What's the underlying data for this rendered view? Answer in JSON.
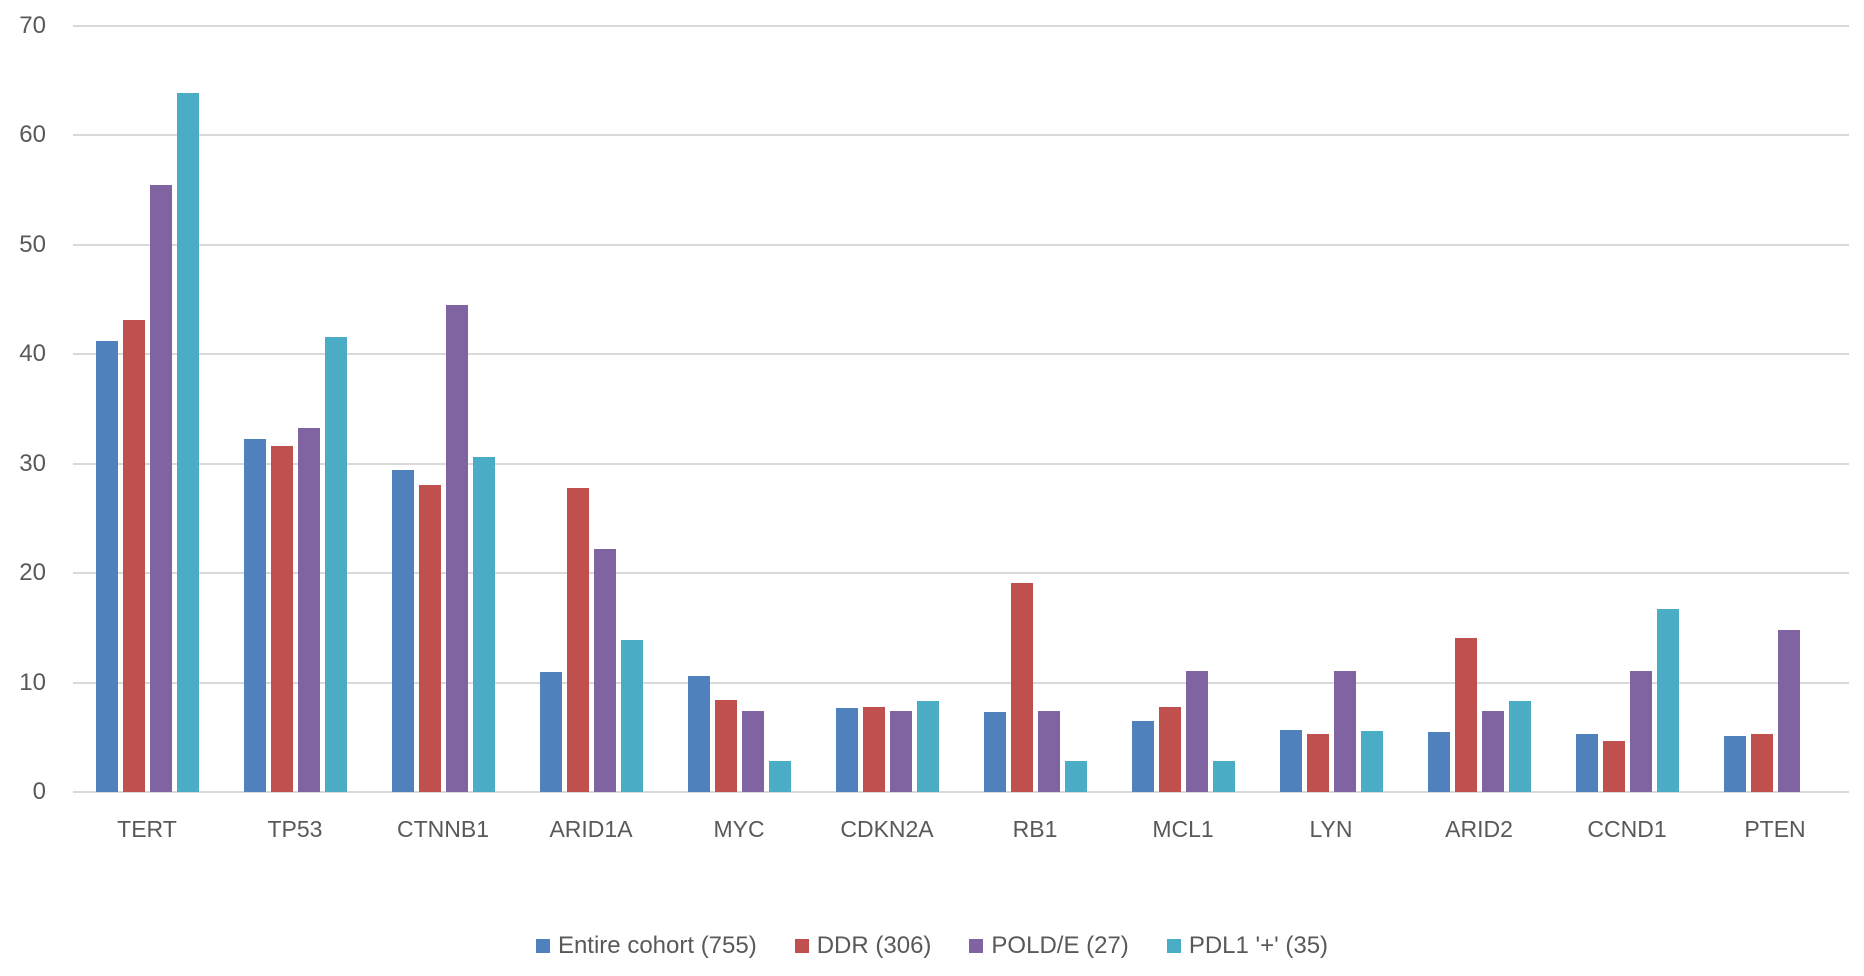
{
  "chart_data": {
    "type": "bar",
    "title": "",
    "xlabel": "",
    "ylabel": "",
    "ylim": [
      0,
      70
    ],
    "yticks": [
      0,
      10,
      20,
      30,
      40,
      50,
      60,
      70
    ],
    "grid": true,
    "legend_position": "bottom",
    "categories": [
      "TERT",
      "TP53",
      "CTNNB1",
      "ARID1A",
      "MYC",
      "CDKN2A",
      "RB1",
      "MCL1",
      "LYN",
      "ARID2",
      "CCND1",
      "PTEN"
    ],
    "series": [
      {
        "name": "Entire cohort (755)",
        "color": "#4F81BD",
        "values": [
          41.2,
          32.3,
          29.4,
          11.0,
          10.6,
          7.7,
          7.3,
          6.5,
          5.7,
          5.5,
          5.3,
          5.1
        ]
      },
      {
        "name": "DDR (306)",
        "color": "#C0504D",
        "values": [
          43.1,
          31.6,
          28.1,
          27.8,
          8.4,
          7.8,
          19.1,
          7.8,
          5.3,
          14.1,
          4.7,
          5.3
        ]
      },
      {
        "name": "POLD/E (27)",
        "color": "#8064A2",
        "values": [
          55.5,
          33.3,
          44.5,
          22.2,
          7.4,
          7.4,
          7.4,
          11.1,
          11.1,
          7.4,
          11.1,
          14.8
        ]
      },
      {
        "name": "PDL1 '+' (35)",
        "color": "#4BACC6",
        "values": [
          63.9,
          41.6,
          30.6,
          13.9,
          2.8,
          8.3,
          2.8,
          2.8,
          5.6,
          8.3,
          16.7,
          0
        ]
      }
    ]
  },
  "legend": {
    "items": [
      {
        "label": "Entire cohort (755)",
        "color": "#4F81BD"
      },
      {
        "label": "DDR (306)",
        "color": "#C0504D"
      },
      {
        "label": "POLD/E (27)",
        "color": "#8064A2"
      },
      {
        "label": "PDL1 '+' (35)",
        "color": "#4BACC6"
      }
    ]
  }
}
